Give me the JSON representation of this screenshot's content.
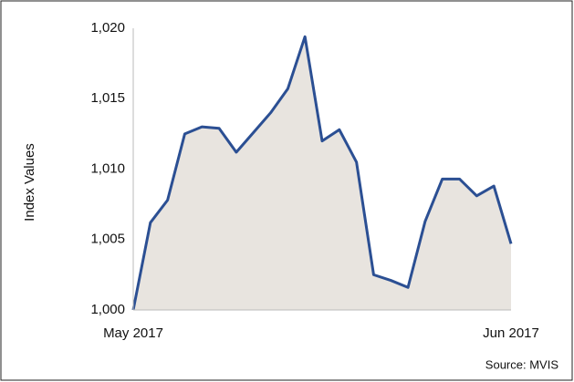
{
  "chart_data": {
    "type": "area",
    "y_label": "Index Values",
    "source": "Source: MVIS",
    "categories": [
      "May 2017",
      null,
      null,
      null,
      null,
      null,
      null,
      null,
      null,
      null,
      null,
      null,
      null,
      null,
      null,
      null,
      null,
      null,
      null,
      null,
      null,
      null,
      "Jun 2017"
    ],
    "values": [
      1000.0,
      1006.2,
      1007.8,
      1012.5,
      1013.0,
      1012.9,
      1011.2,
      1012.6,
      1014.0,
      1015.7,
      1019.4,
      1012.0,
      1012.8,
      1010.5,
      1002.5,
      1002.1,
      1001.6,
      1006.3,
      1009.3,
      1009.3,
      1008.1,
      1008.8,
      1004.7
    ],
    "color": "#2b4f93",
    "fill": "#e8e4df",
    "ylim": [
      1000,
      1020
    ],
    "yticks": [
      {
        "value": 1000,
        "label": "1,000"
      },
      {
        "value": 1005,
        "label": "1,005"
      },
      {
        "value": 1010,
        "label": "1,010"
      },
      {
        "value": 1015,
        "label": "1,015"
      },
      {
        "value": 1020,
        "label": "1,020"
      }
    ]
  }
}
